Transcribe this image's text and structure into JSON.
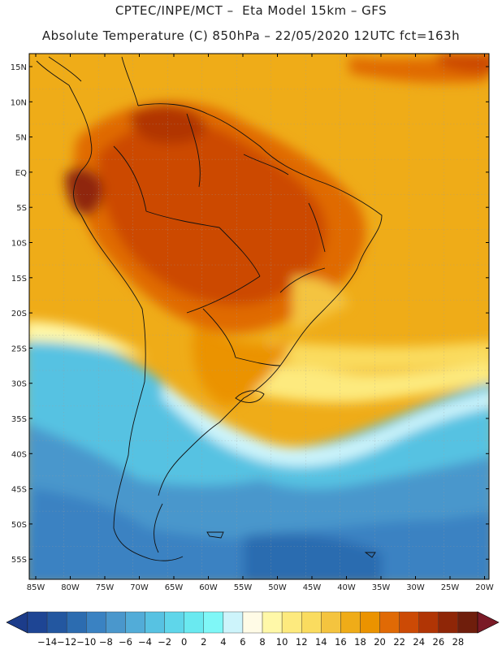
{
  "header": {
    "line1": "CPTEC/INPE/MCT –  Eta Model 15km – GFS",
    "line2": "Absolute Temperature (C) 850hPa – 22/05/2020 12UTC fct=163h"
  },
  "lat_ticks": [
    "15N",
    "10N",
    "5N",
    "EQ",
    "5S",
    "10S",
    "15S",
    "20S",
    "25S",
    "30S",
    "35S",
    "40S",
    "45S",
    "50S",
    "55S"
  ],
  "lon_ticks": [
    "85W",
    "80W",
    "75W",
    "70W",
    "65W",
    "60W",
    "55W",
    "50W",
    "45W",
    "40W",
    "35W",
    "30W",
    "25W",
    "20W"
  ],
  "colorbar": {
    "labels": [
      "-14",
      "-12",
      "-10",
      "-8",
      "-6",
      "-4",
      "-2",
      "0",
      "2",
      "4",
      "6",
      "8",
      "10",
      "12",
      "14",
      "16",
      "18",
      "20",
      "22",
      "24",
      "26",
      "28"
    ],
    "colors": [
      "#1e4594",
      "#2357a0",
      "#2c6cb0",
      "#3a82c2",
      "#4a97cc",
      "#52acd8",
      "#57c2e2",
      "#5fd6ea",
      "#6ae9f0",
      "#7ff7f7",
      "#cdf4fb",
      "#fffbe6",
      "#fff8a8",
      "#fdea7e",
      "#fadc5f",
      "#f4c43f",
      "#efac18",
      "#eb9300",
      "#e06a05",
      "#cc4a05",
      "#b13505",
      "#8f2607",
      "#6f1e0c"
    ],
    "under_color": "#1c3c8a",
    "over_color": "#7a1a26"
  }
}
